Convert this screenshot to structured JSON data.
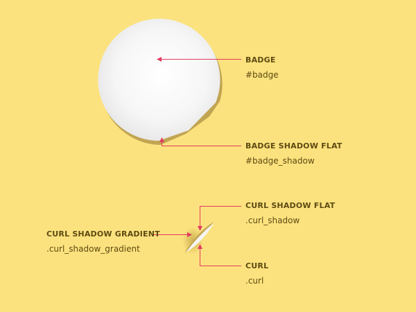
{
  "colors": {
    "background": "#fce27e",
    "accent": "#e23a5f",
    "label": "#5d4a12",
    "badge": "#ffffff",
    "badge_shadow": "#c2a553"
  },
  "labels": {
    "badge": {
      "title": "BADGE",
      "selector": "#badge"
    },
    "badge_shadow": {
      "title": "BADGE SHADOW FLAT",
      "selector": "#badge_shadow"
    },
    "curl_shadow": {
      "title": "CURL SHADOW FLAT",
      "selector": ".curl_shadow"
    },
    "curl_shadow_gradient": {
      "title": "CURL SHADOW GRADIENT",
      "selector": ".curl_shadow_gradient"
    },
    "curl": {
      "title": "CURL",
      "selector": ".curl"
    }
  }
}
